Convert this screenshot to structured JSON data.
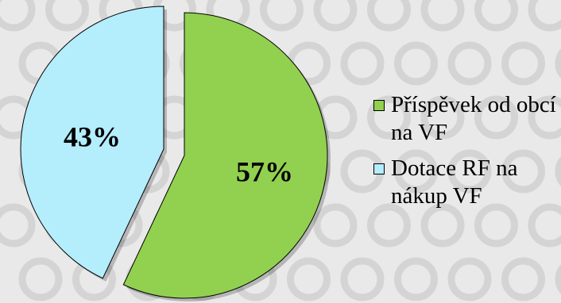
{
  "chart_data": {
    "type": "pie",
    "labels": [
      "Příspěvek od obcí na VF",
      "Dotace RF na nákup VF"
    ],
    "values": [
      57,
      43
    ],
    "data_labels": [
      "57%",
      "43%"
    ],
    "colors": [
      "#92d050",
      "#b4edfc"
    ],
    "legend_position": "right",
    "exploded": true
  },
  "legend": {
    "item1": "Příspěvek od obcí na VF",
    "item2": "Dotace RF na nákup VF"
  },
  "style": {
    "background": "#e9e9e9",
    "pattern_ring": "#d4d4d4"
  }
}
